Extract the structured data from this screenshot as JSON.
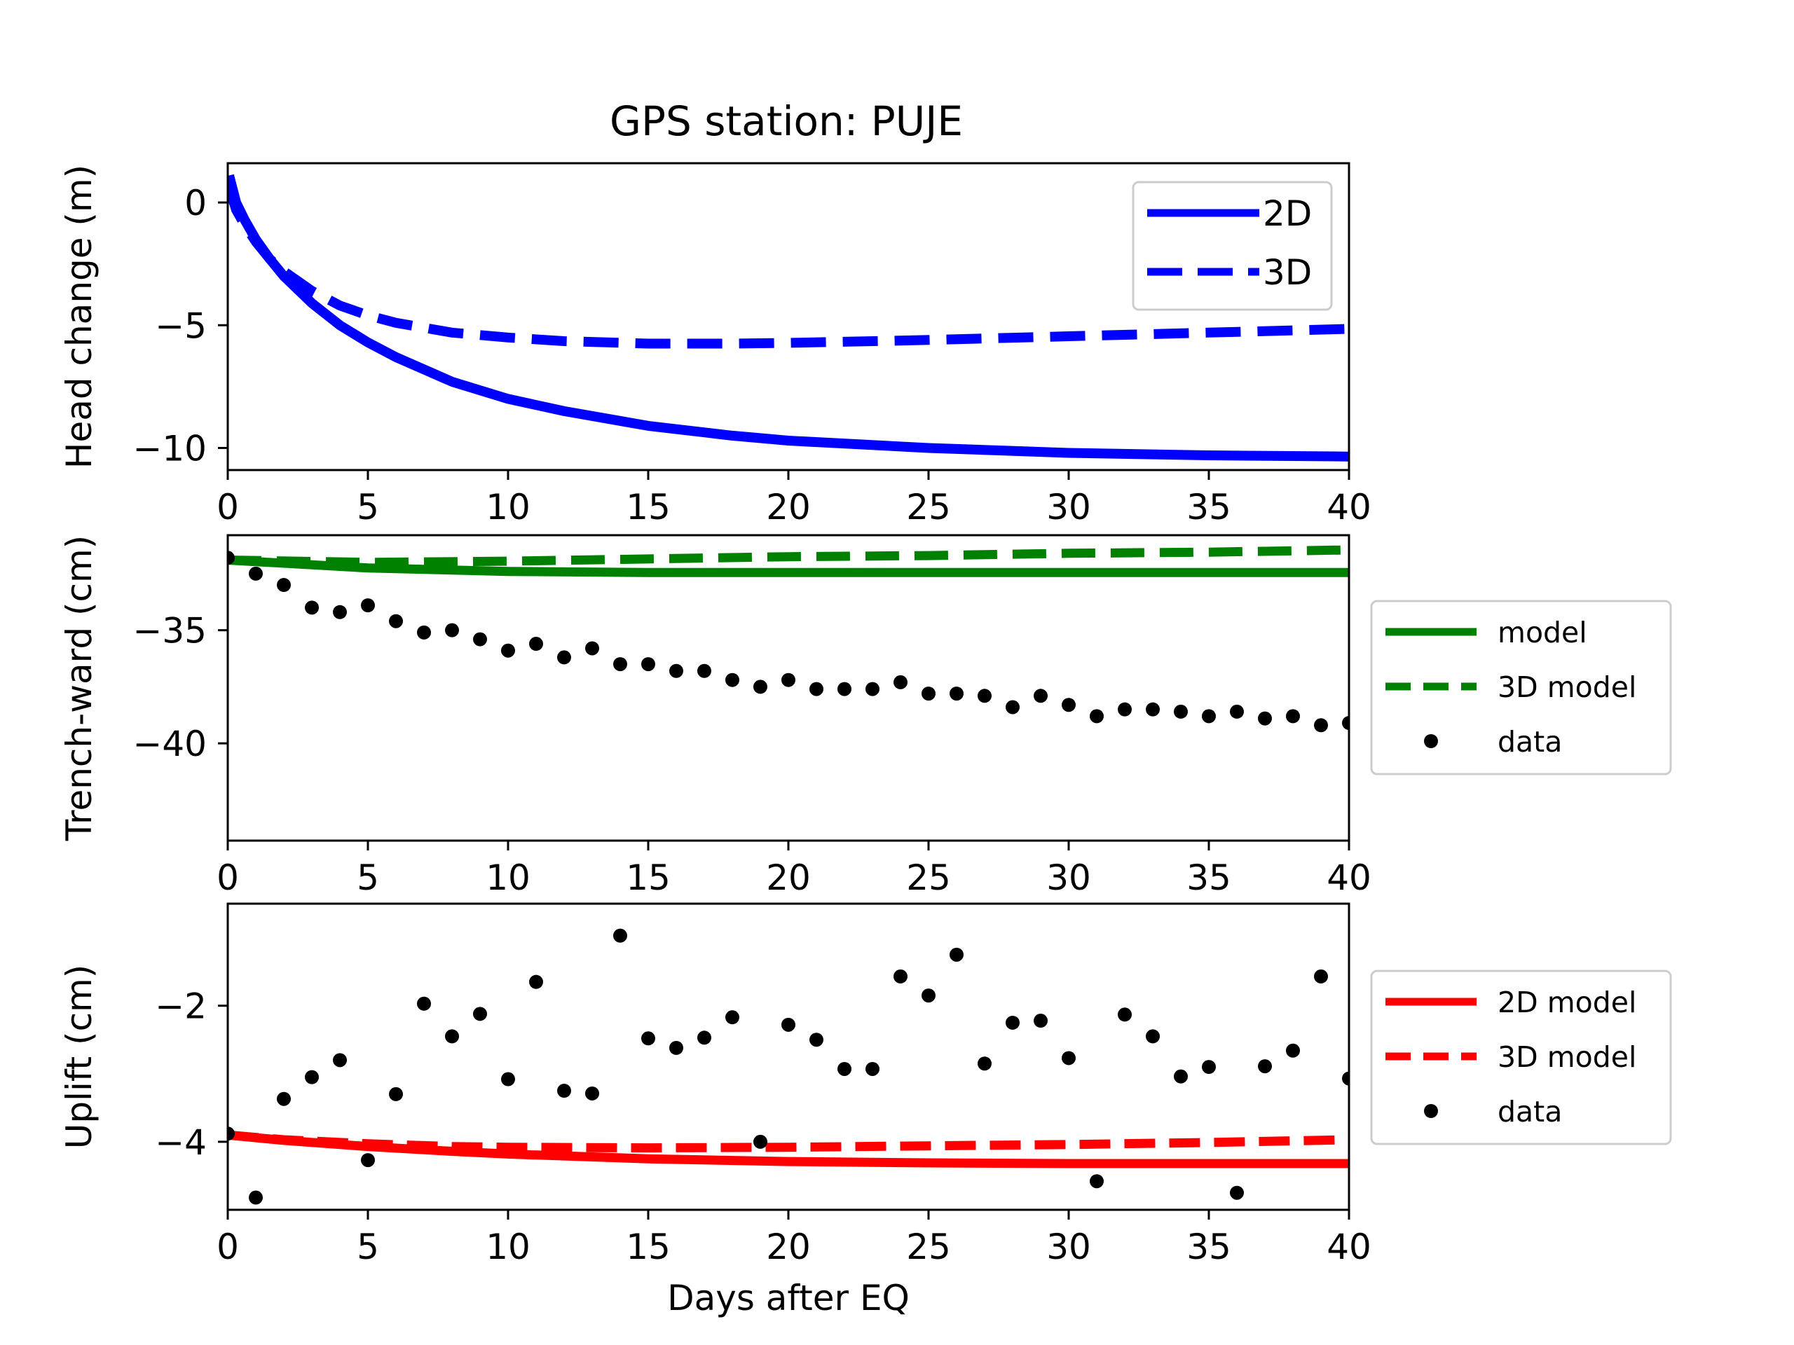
{
  "figure_title": "GPS station: PUJE",
  "colors": {
    "blue": "#0000ff",
    "green": "#008000",
    "red": "#ff0000",
    "data": "#000000"
  },
  "chart_data": [
    {
      "type": "line",
      "title": "GPS station: PUJE",
      "xlabel": "",
      "ylabel": "Head change (m)",
      "xlim": [
        0,
        40
      ],
      "ylim": [
        -10.9,
        1.6
      ],
      "xticks": [
        0,
        5,
        10,
        15,
        20,
        25,
        30,
        35,
        40
      ],
      "yticks": [
        0,
        -5,
        -10
      ],
      "legend_position": "upper-right-inside",
      "grid": false,
      "series": [
        {
          "name": "2D",
          "style": "solid",
          "color": "#0000ff",
          "x": [
            0.05,
            0.3,
            0.6,
            1,
            1.5,
            2,
            3,
            4,
            5,
            6,
            8,
            10,
            12,
            15,
            18,
            20,
            25,
            30,
            35,
            40
          ],
          "y": [
            1.1,
            0.0,
            -0.7,
            -1.5,
            -2.3,
            -3.0,
            -4.1,
            -5.0,
            -5.7,
            -6.3,
            -7.3,
            -8.0,
            -8.5,
            -9.1,
            -9.5,
            -9.7,
            -10.0,
            -10.2,
            -10.3,
            -10.35
          ]
        },
        {
          "name": "3D",
          "style": "dashed",
          "color": "#0000ff",
          "x": [
            0.05,
            0.3,
            0.6,
            1,
            1.5,
            2,
            3,
            4,
            5,
            6,
            8,
            10,
            12,
            15,
            18,
            20,
            25,
            30,
            35,
            40
          ],
          "y": [
            0.6,
            -0.3,
            -0.9,
            -1.6,
            -2.3,
            -2.8,
            -3.6,
            -4.2,
            -4.6,
            -4.9,
            -5.3,
            -5.5,
            -5.65,
            -5.75,
            -5.75,
            -5.72,
            -5.6,
            -5.45,
            -5.3,
            -5.15
          ]
        }
      ]
    },
    {
      "type": "line",
      "xlabel": "",
      "ylabel": "Trench-ward (cm)",
      "xlim": [
        0,
        40
      ],
      "ylim": [
        -44.3,
        -30.8
      ],
      "xticks": [
        0,
        5,
        10,
        15,
        20,
        25,
        30,
        35,
        40
      ],
      "yticks": [
        -35,
        -40
      ],
      "legend_position": "right-outside",
      "grid": false,
      "series": [
        {
          "name": "model",
          "style": "solid",
          "color": "#008000",
          "x": [
            0,
            5,
            10,
            15,
            20,
            25,
            30,
            35,
            40
          ],
          "y": [
            -31.9,
            -32.25,
            -32.4,
            -32.45,
            -32.45,
            -32.45,
            -32.45,
            -32.45,
            -32.45
          ]
        },
        {
          "name": "3D model",
          "style": "dashed",
          "color": "#008000",
          "x": [
            0,
            5,
            10,
            15,
            20,
            25,
            30,
            35,
            40
          ],
          "y": [
            -31.9,
            -32.0,
            -31.95,
            -31.85,
            -31.75,
            -31.7,
            -31.6,
            -31.55,
            -31.45
          ]
        },
        {
          "name": "data",
          "style": "points",
          "color": "#000000",
          "x": [
            0,
            1,
            2,
            3,
            4,
            5,
            6,
            7,
            8,
            9,
            10,
            11,
            12,
            13,
            14,
            15,
            16,
            17,
            18,
            19,
            20,
            21,
            22,
            23,
            24,
            25,
            26,
            27,
            28,
            29,
            30,
            31,
            32,
            33,
            34,
            35,
            36,
            37,
            38,
            39,
            40
          ],
          "y": [
            -31.8,
            -32.5,
            -33.0,
            -34.0,
            -34.2,
            -33.9,
            -34.6,
            -35.1,
            -35.0,
            -35.4,
            -35.9,
            -35.6,
            -36.2,
            -35.8,
            -36.5,
            -36.5,
            -36.8,
            -36.8,
            -37.2,
            -37.5,
            -37.2,
            -37.6,
            -37.6,
            -37.6,
            -37.3,
            -37.8,
            -37.8,
            -37.9,
            -38.4,
            -37.9,
            -38.3,
            -38.8,
            -38.5,
            -38.5,
            -38.6,
            -38.8,
            -38.6,
            -38.9,
            -38.8,
            -39.2,
            -39.1
          ]
        }
      ]
    },
    {
      "type": "line",
      "xlabel": "Days after EQ",
      "ylabel": "Uplift (cm)",
      "xlim": [
        0,
        40
      ],
      "ylim": [
        -5.0,
        -0.5
      ],
      "xticks": [
        0,
        5,
        10,
        15,
        20,
        25,
        30,
        35,
        40
      ],
      "yticks": [
        -2,
        -4
      ],
      "legend_position": "right-outside",
      "grid": false,
      "series": [
        {
          "name": "2D model",
          "style": "solid",
          "color": "#ff0000",
          "x": [
            0,
            2,
            5,
            8,
            10,
            15,
            20,
            25,
            30,
            35,
            40
          ],
          "y": [
            -3.9,
            -3.98,
            -4.07,
            -4.14,
            -4.18,
            -4.25,
            -4.29,
            -4.31,
            -4.32,
            -4.32,
            -4.32
          ]
        },
        {
          "name": "3D model",
          "style": "dashed",
          "color": "#ff0000",
          "x": [
            0,
            2,
            5,
            8,
            10,
            15,
            20,
            25,
            30,
            35,
            40
          ],
          "y": [
            -3.9,
            -3.97,
            -4.03,
            -4.07,
            -4.08,
            -4.09,
            -4.08,
            -4.06,
            -4.04,
            -4.01,
            -3.97
          ]
        },
        {
          "name": "data",
          "style": "points",
          "color": "#000000",
          "x": [
            0,
            1,
            2,
            3,
            4,
            5,
            6,
            7,
            8,
            9,
            10,
            11,
            12,
            13,
            14,
            15,
            16,
            17,
            18,
            19,
            20,
            21,
            22,
            23,
            24,
            25,
            26,
            27,
            28,
            29,
            30,
            31,
            32,
            33,
            34,
            35,
            36,
            37,
            38,
            39,
            40
          ],
          "y": [
            -3.88,
            -4.82,
            -3.37,
            -3.05,
            -2.8,
            -4.27,
            -3.3,
            -1.97,
            -2.45,
            -2.12,
            -3.08,
            -1.65,
            -3.25,
            -3.29,
            -0.97,
            -2.48,
            -2.62,
            -2.47,
            -2.17,
            -4.0,
            -2.28,
            -2.5,
            -2.93,
            -2.93,
            -1.57,
            -1.85,
            -1.25,
            -2.85,
            -2.25,
            -2.22,
            -2.77,
            -4.58,
            -2.13,
            -2.45,
            -3.04,
            -2.9,
            -4.75,
            -2.89,
            -2.66,
            -1.57,
            -3.07
          ]
        }
      ]
    }
  ]
}
